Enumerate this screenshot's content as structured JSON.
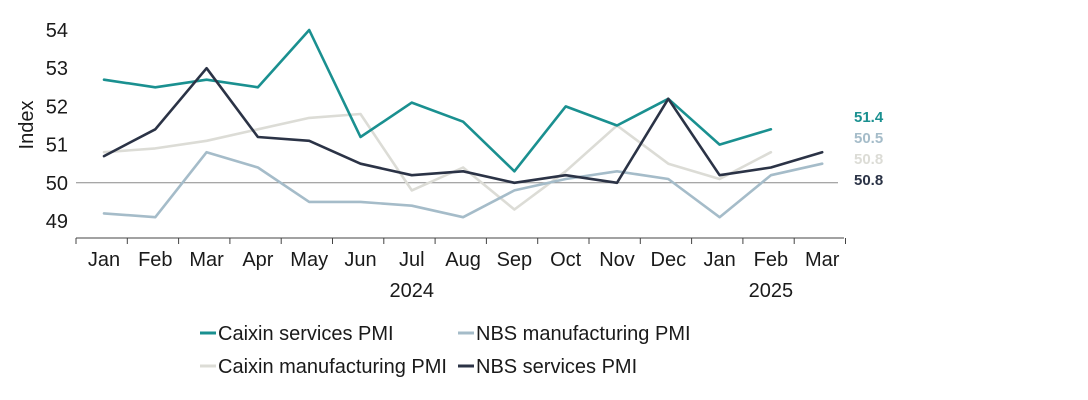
{
  "chart_data": {
    "type": "line",
    "ylabel": "Index",
    "ylim": [
      49,
      54
    ],
    "yticks": [
      "49",
      "50",
      "51",
      "52",
      "53",
      "54"
    ],
    "categories": [
      "Jan",
      "Feb",
      "Mar",
      "Apr",
      "May",
      "Jun",
      "Jul",
      "Aug",
      "Sep",
      "Oct",
      "Nov",
      "Dec",
      "Jan",
      "Feb",
      "Mar"
    ],
    "year_labels": [
      {
        "label": "2024",
        "category_index": 6
      },
      {
        "label": "2025",
        "category_index": 13
      }
    ],
    "reference_line": 50,
    "grid": false,
    "legend_position": "bottom",
    "series": [
      {
        "name": "Caixin services PMI",
        "color": "#1a9090",
        "values": [
          52.7,
          52.5,
          52.7,
          52.5,
          54.0,
          51.2,
          52.1,
          51.6,
          50.3,
          52.0,
          51.5,
          52.2,
          51.0,
          51.4,
          null
        ],
        "end_label": "51.4"
      },
      {
        "name": "NBS manufacturing PMI",
        "color": "#a5bcc9",
        "values": [
          49.2,
          49.1,
          50.8,
          50.4,
          49.5,
          49.5,
          49.4,
          49.1,
          49.8,
          50.1,
          50.3,
          50.1,
          49.1,
          50.2,
          50.5
        ],
        "end_label": "50.5"
      },
      {
        "name": "Caixin manufacturing PMI",
        "color": "#dcdcd6",
        "values": [
          50.8,
          50.9,
          51.1,
          51.4,
          51.7,
          51.8,
          49.8,
          50.4,
          49.3,
          50.3,
          51.5,
          50.5,
          50.1,
          50.8,
          null
        ],
        "end_label": "50.8"
      },
      {
        "name": "NBS services PMI",
        "color": "#2b3346",
        "values": [
          50.7,
          51.4,
          53.0,
          51.2,
          51.1,
          50.5,
          50.2,
          50.3,
          50.0,
          50.2,
          50.0,
          52.2,
          50.2,
          50.4,
          50.8
        ],
        "end_label": "50.8"
      }
    ]
  }
}
